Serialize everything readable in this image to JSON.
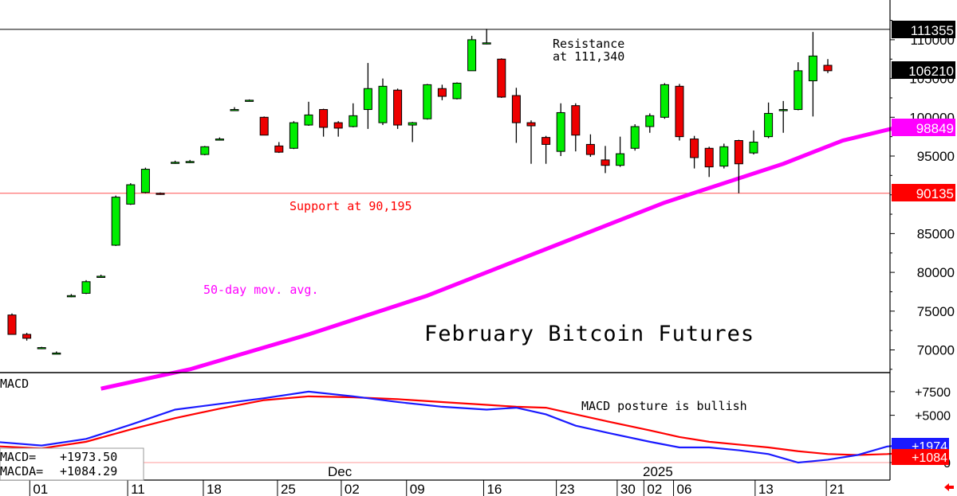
{
  "chart_data": {
    "type": "candlestick",
    "title": "February Bitcoin Futures",
    "y_axis": {
      "range": [
        65000,
        116000
      ],
      "ticks": [
        70000,
        75000,
        80000,
        85000,
        90000,
        95000,
        100000,
        105000,
        110000
      ],
      "tick_labels": [
        "70000",
        "75000",
        "80000",
        "85000",
        "90000",
        "95000",
        "100000",
        "105000",
        "110000"
      ]
    },
    "x_axis": {
      "tick_labels": [
        "01",
        "11",
        "18",
        "25",
        "02",
        "09",
        "16",
        "23",
        "30",
        "02",
        "06",
        "13",
        "21"
      ],
      "month_labels": [
        "Dec",
        "2025"
      ]
    },
    "price_tags": [
      {
        "label": "111355",
        "value": 111355,
        "color": "#000000"
      },
      {
        "label": "106210",
        "value": 106210,
        "color": "#000000"
      },
      {
        "label": "98849",
        "value": 98849,
        "color": "#ff00ff"
      },
      {
        "label": "90135",
        "value": 90135,
        "color": "#ff0000"
      }
    ],
    "annotations": {
      "resistance": "Resistance\nat 111,340",
      "support": "Support at 90,195",
      "moving_average": "50-day mov. avg.",
      "macd_note": "MACD posture is bullish"
    },
    "levels": {
      "resistance": 111340,
      "support": 90195
    },
    "candles": [
      [
        74500,
        74700,
        72000,
        72000
      ],
      [
        72000,
        72200,
        71200,
        71500
      ],
      [
        70300,
        70400,
        70100,
        70300
      ],
      [
        69600,
        69800,
        69500,
        69600
      ],
      [
        77000,
        77200,
        76800,
        77000
      ],
      [
        77300,
        79000,
        77200,
        78800
      ],
      [
        79500,
        79700,
        79300,
        79500
      ],
      [
        83500,
        89900,
        83400,
        89700
      ],
      [
        88800,
        91500,
        88700,
        91300
      ],
      [
        90300,
        93500,
        90200,
        93300
      ],
      [
        90200,
        90300,
        90000,
        90100
      ],
      [
        94200,
        94400,
        94000,
        94200
      ],
      [
        94300,
        94500,
        94100,
        94300
      ],
      [
        95200,
        96300,
        95100,
        96200
      ],
      [
        97200,
        97400,
        97000,
        97200
      ],
      [
        101000,
        101300,
        100800,
        101000
      ],
      [
        102200,
        102300,
        102100,
        102200
      ],
      [
        100000,
        100100,
        97700,
        97700
      ],
      [
        96300,
        96800,
        95400,
        95500
      ],
      [
        96000,
        99500,
        95900,
        99300
      ],
      [
        99000,
        102000,
        98900,
        100300
      ],
      [
        101000,
        101100,
        97500,
        98700
      ],
      [
        99300,
        99500,
        97500,
        98600
      ],
      [
        98800,
        101800,
        98700,
        100200
      ],
      [
        101000,
        107000,
        98500,
        103700
      ],
      [
        99300,
        105000,
        99000,
        104000
      ],
      [
        103500,
        103700,
        98500,
        99000
      ],
      [
        99000,
        99400,
        96800,
        99300
      ],
      [
        99800,
        104300,
        99700,
        104200
      ],
      [
        103700,
        104200,
        102200,
        102700
      ],
      [
        102400,
        104500,
        102300,
        104400
      ],
      [
        106000,
        110500,
        106000,
        110000
      ],
      [
        109600,
        111400,
        109400,
        109600
      ],
      [
        107500,
        107600,
        102500,
        102600
      ],
      [
        102800,
        103800,
        96700,
        99300
      ],
      [
        99300,
        99600,
        94000,
        98900
      ],
      [
        97400,
        97600,
        94000,
        96500
      ],
      [
        95600,
        101800,
        95000,
        100600
      ],
      [
        101500,
        101800,
        95600,
        97700
      ],
      [
        96500,
        97800,
        94900,
        95200
      ],
      [
        94500,
        96300,
        92800,
        93800
      ],
      [
        93800,
        97500,
        93600,
        95300
      ],
      [
        96000,
        99100,
        95700,
        98800
      ],
      [
        98800,
        100500,
        98000,
        100200
      ],
      [
        100000,
        104400,
        99800,
        104200
      ],
      [
        104000,
        104300,
        97000,
        97500
      ],
      [
        97200,
        97600,
        93400,
        94800
      ],
      [
        96000,
        96200,
        92300,
        93600
      ],
      [
        93700,
        96600,
        93400,
        96200
      ],
      [
        97000,
        97100,
        90200,
        94000
      ],
      [
        95400,
        98300,
        95200,
        96800
      ],
      [
        97500,
        101900,
        97300,
        100500
      ],
      [
        101000,
        102100,
        98000,
        101000
      ],
      [
        101000,
        107100,
        100900,
        106000
      ],
      [
        104700,
        111000,
        100100,
        107900
      ],
      [
        106700,
        107500,
        105700,
        106000
      ]
    ],
    "moving_average_50": [
      [
        6,
        65000
      ],
      [
        12,
        67500
      ],
      [
        20,
        72000
      ],
      [
        28,
        77000
      ],
      [
        36,
        83000
      ],
      [
        44,
        89000
      ],
      [
        52,
        94000
      ],
      [
        56,
        97000
      ],
      [
        60,
        98849
      ]
    ],
    "macd_panel": {
      "label": "MACD",
      "axis_ticks": [
        0,
        5000,
        7500
      ],
      "axis_tick_labels": [
        "0",
        "+5000",
        "+7500"
      ],
      "readout": {
        "macd_label": "MACD=",
        "macd_value": "+1973.50",
        "macda_label": "MACDA=",
        "macda_value": "+1084.29"
      },
      "tags": [
        {
          "label": "+1974",
          "color": "#1a1aff"
        },
        {
          "label": "+1084",
          "color": "#ff0000"
        }
      ],
      "macd_line": [
        [
          -2,
          2300
        ],
        [
          2,
          1800
        ],
        [
          5,
          2500
        ],
        [
          8,
          4000
        ],
        [
          11,
          5600
        ],
        [
          14,
          6200
        ],
        [
          17,
          6800
        ],
        [
          20,
          7500
        ],
        [
          23,
          7000
        ],
        [
          26,
          6400
        ],
        [
          29,
          5900
        ],
        [
          32,
          5600
        ],
        [
          34,
          5800
        ],
        [
          36,
          5100
        ],
        [
          38,
          3900
        ],
        [
          40,
          3200
        ],
        [
          43,
          2200
        ],
        [
          45,
          1600
        ],
        [
          47,
          1600
        ],
        [
          49,
          1300
        ],
        [
          51,
          900
        ],
        [
          53,
          0
        ],
        [
          55,
          300
        ],
        [
          57,
          800
        ],
        [
          59,
          1700
        ],
        [
          61,
          1974
        ]
      ],
      "macda_line": [
        [
          -2,
          1800
        ],
        [
          2,
          1500
        ],
        [
          5,
          2200
        ],
        [
          8,
          3500
        ],
        [
          11,
          4700
        ],
        [
          14,
          5700
        ],
        [
          17,
          6600
        ],
        [
          20,
          7000
        ],
        [
          23,
          6900
        ],
        [
          26,
          6700
        ],
        [
          29,
          6400
        ],
        [
          32,
          6100
        ],
        [
          34,
          5900
        ],
        [
          36,
          5800
        ],
        [
          38,
          5100
        ],
        [
          40,
          4400
        ],
        [
          43,
          3400
        ],
        [
          45,
          2700
        ],
        [
          47,
          2200
        ],
        [
          49,
          1900
        ],
        [
          51,
          1600
        ],
        [
          53,
          1200
        ],
        [
          55,
          900
        ],
        [
          57,
          800
        ],
        [
          59,
          900
        ],
        [
          61,
          1084
        ]
      ]
    },
    "colors": {
      "up": "#00ee00",
      "down": "#ee0000",
      "ma": "#ff00ff",
      "macd": "#1a1aff",
      "macda": "#ff0000"
    }
  }
}
